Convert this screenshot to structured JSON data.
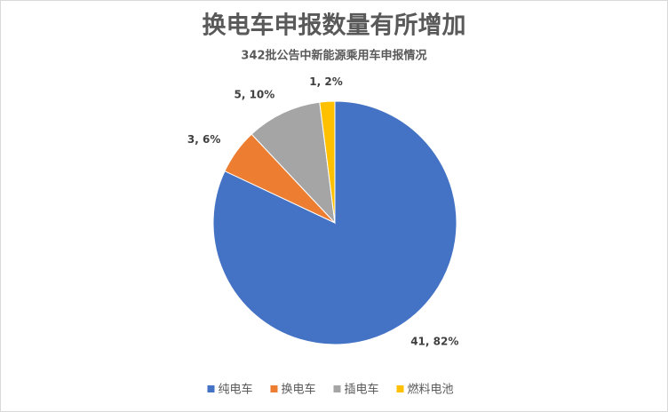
{
  "chart_data": {
    "type": "pie",
    "title": "换电车申报数量有所增加",
    "subtitle": "342批公告中新能源乘用车申报情况",
    "categories": [
      "纯电车",
      "换电车",
      "插电车",
      "燃料电池"
    ],
    "values": [
      41,
      3,
      5,
      1
    ],
    "value_labels": [
      "41, 82%",
      "3, 6%",
      "5, 10%",
      "1, 2%"
    ],
    "colors": [
      "#4472c4",
      "#ed7d31",
      "#a5a5a5",
      "#ffc000"
    ],
    "legend": "bottom"
  }
}
